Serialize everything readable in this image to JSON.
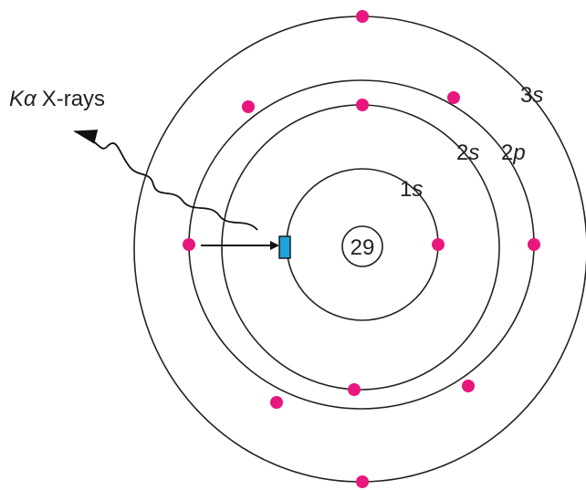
{
  "diagram": {
    "emission_label": {
      "symbol": "Kα",
      "text": "X-rays"
    },
    "nucleus": "29",
    "shells": [
      {
        "number": "1",
        "letter": "s"
      },
      {
        "number": "2",
        "letter": "s"
      },
      {
        "number": "2",
        "letter": "p"
      },
      {
        "number": "3",
        "letter": "s"
      }
    ]
  }
}
